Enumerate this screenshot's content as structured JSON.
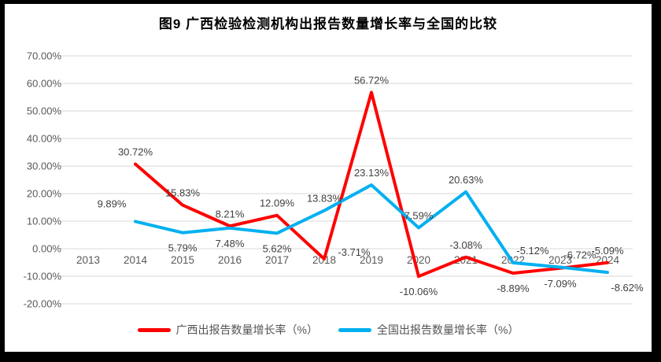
{
  "chart_data": {
    "type": "line",
    "title": "图9 广西检验检测机构出报告数量增长率与全国的比较",
    "categories": [
      "2013",
      "2014",
      "2015",
      "2016",
      "2017",
      "2018",
      "2019",
      "2020",
      "2021",
      "2022",
      "2023",
      "2024"
    ],
    "xlabel": "",
    "ylabel": "",
    "ylim": [
      -20,
      70
    ],
    "grid": true,
    "gridline_color": "#D9D9D9",
    "legend_position": "bottom",
    "y_axis": {
      "ticks": [
        {
          "value": 70,
          "label": "70.00%"
        },
        {
          "value": 60,
          "label": "60.00%"
        },
        {
          "value": 50,
          "label": "50.00%"
        },
        {
          "value": 40,
          "label": "40.00%"
        },
        {
          "value": 30,
          "label": "30.00%"
        },
        {
          "value": 20,
          "label": "20.00%"
        },
        {
          "value": 10,
          "label": "10.00%"
        },
        {
          "value": 0,
          "label": "0.00%"
        },
        {
          "value": -10,
          "label": "-10.00%"
        },
        {
          "value": -20,
          "label": "-20.00%"
        }
      ]
    },
    "series": [
      {
        "id": "guangxi",
        "name": "广西出报告数量增长率（%）",
        "color": "#FF0000",
        "values": [
          null,
          30.72,
          15.83,
          8.21,
          12.09,
          -3.71,
          56.72,
          -10.06,
          -3.08,
          -8.89,
          -7.09,
          -5.09
        ],
        "labels": [
          "",
          "30.72%",
          "15.83%",
          "8.21%",
          "12.09%",
          "-3.71%",
          "56.72%",
          "-10.06%",
          "-3.08%",
          "-8.89%",
          "-7.09%",
          "-5.09%"
        ],
        "label_pos": [
          "",
          "above",
          "above",
          "above",
          "above",
          "right",
          "above",
          "below",
          "above",
          "below",
          "below",
          "above"
        ]
      },
      {
        "id": "national",
        "name": "全国出报告数量增长率（%）",
        "color": "#00B0F0",
        "values": [
          null,
          9.89,
          5.79,
          7.48,
          5.62,
          13.83,
          23.13,
          7.59,
          20.63,
          -5.12,
          -6.72,
          -8.62
        ],
        "labels": [
          "",
          "9.89%",
          "5.79%",
          "7.48%",
          "5.62%",
          "13.83%",
          "23.13%",
          "7.59%",
          "20.63%",
          "-5.12%",
          "-6.72%",
          "-8.62%"
        ],
        "label_pos": [
          "",
          "above-left",
          "below",
          "below",
          "below",
          "above",
          "above",
          "above",
          "above",
          "above-right",
          "above-right",
          "below-right"
        ]
      }
    ]
  }
}
